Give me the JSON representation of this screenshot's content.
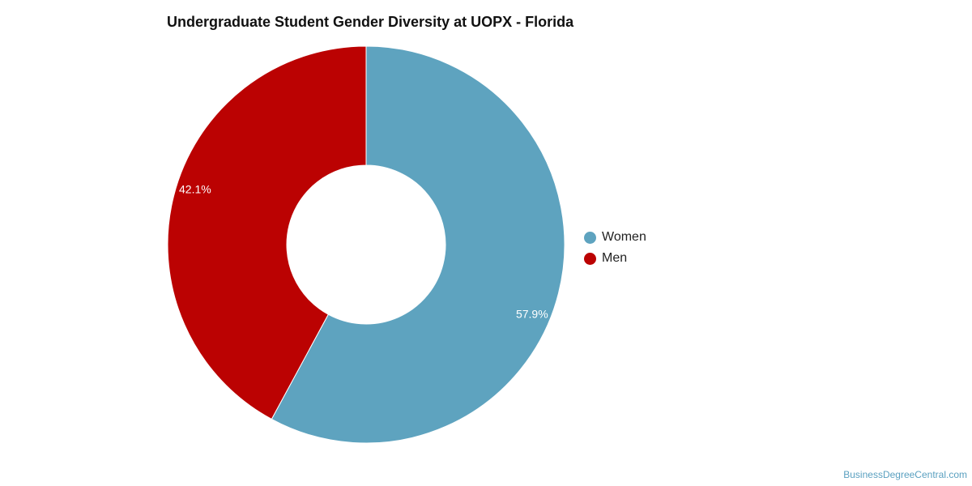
{
  "chart_data": {
    "type": "pie",
    "title": "Undergraduate Student Gender Diversity at UOPX - Florida",
    "donut": true,
    "categories": [
      "Women",
      "Men"
    ],
    "values": [
      57.9,
      42.1
    ],
    "labels": [
      "57.9%",
      "42.1%"
    ],
    "colors": [
      "#5ea3bf",
      "#bb0202"
    ],
    "legend": "right"
  },
  "watermark": "BusinessDegreeCentral.com"
}
